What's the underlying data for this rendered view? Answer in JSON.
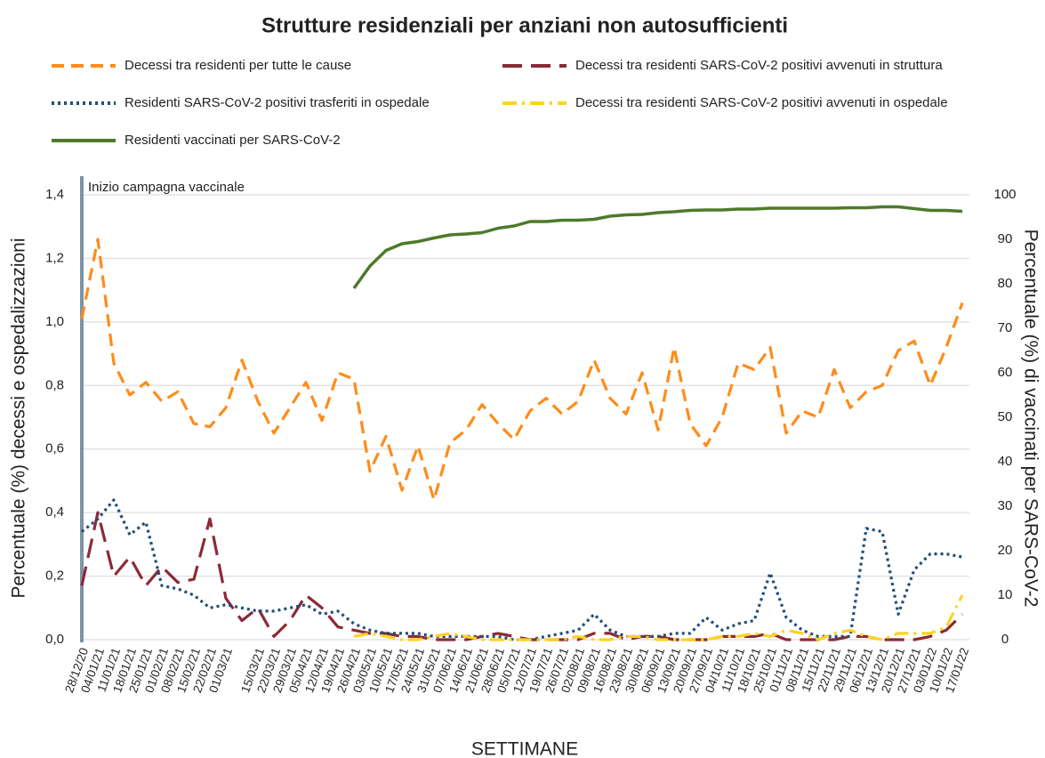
{
  "chart_data": {
    "type": "line",
    "title": "Strutture residenziali per anziani non autosufficienti",
    "x_label": "SETTIMANE",
    "y_label": "Percentuale (%) decessi e ospedalizzazioni",
    "y2_label": "Percentuale (%) di vaccinati per SARS-CoV-2",
    "annotation": "Inizio campagna vaccinale",
    "annotation_category": 0,
    "grid": true,
    "categories": [
      "28/12/20",
      "04/01/21",
      "11/01/21",
      "18/01/21",
      "25/01/21",
      "01/02/21",
      "08/02/21",
      "15/02/21",
      "22/02/21",
      "01/03/21",
      null,
      "15/03/21",
      "22/03/21",
      "29/03/21",
      "05/04/21",
      "12/04/21",
      "19/04/21",
      "26/04/21",
      "03/05/21",
      "10/05/21",
      "17/05/21",
      "24/05/21",
      "31/05/21",
      "07/06/21",
      "14/06/21",
      "21/06/21",
      "28/06/21",
      "05/07/21",
      "12/07/21",
      "19/07/21",
      "26/07/21",
      "02/08/21",
      "09/08/21",
      "16/08/21",
      "23/08/21",
      "30/08/21",
      "06/09/21",
      "13/09/21",
      "20/09/21",
      "27/09/21",
      "04/10/21",
      "11/10/21",
      "18/10/21",
      "25/10/21",
      "01/11/21",
      "08/11/21",
      "15/11/21",
      "22/11/21",
      "29/11/21",
      "06/12/21",
      "13/12/21",
      "20/12/21",
      "27/12/21",
      "03/01/22",
      "10/01/22",
      "17/01/22"
    ],
    "ylim": [
      0,
      1.4
    ],
    "yticks": [
      {
        "value": 0,
        "label": "0,0"
      },
      {
        "value": 0.2,
        "label": "0,2"
      },
      {
        "value": 0.4,
        "label": "0,4"
      },
      {
        "value": 0.6,
        "label": "0,6"
      },
      {
        "value": 0.8,
        "label": "0,8"
      },
      {
        "value": 1.0,
        "label": "1,0"
      },
      {
        "value": 1.2,
        "label": "1,2"
      },
      {
        "value": 1.4,
        "label": "1,4"
      }
    ],
    "y2lim": [
      0,
      100
    ],
    "y2ticks": [
      0,
      10,
      20,
      30,
      40,
      50,
      60,
      70,
      80,
      90,
      100
    ],
    "series": [
      {
        "name": "Decessi tra residenti per tutte le cause",
        "color": "#ff8c1a",
        "style": "dashed",
        "values": [
          1.01,
          1.26,
          0.87,
          0.77,
          0.81,
          0.75,
          0.78,
          0.68,
          0.67,
          0.73,
          0.88,
          0.75,
          0.65,
          0.73,
          0.81,
          0.69,
          0.84,
          0.82,
          0.53,
          0.64,
          0.47,
          0.61,
          0.44,
          0.62,
          0.66,
          0.74,
          0.68,
          0.63,
          0.72,
          0.76,
          0.71,
          0.75,
          0.88,
          0.76,
          0.71,
          0.84,
          0.66,
          0.92,
          0.68,
          0.61,
          0.7,
          0.87,
          0.85,
          0.92,
          0.65,
          0.72,
          0.7,
          0.85,
          0.73,
          0.78,
          0.8,
          0.91,
          0.94,
          0.8,
          0.92,
          1.06
        ]
      },
      {
        "name": "Decessi tra residenti SARS-CoV-2 positivi avvenuti in struttura",
        "color": "#8b2a35",
        "style": "longdash",
        "values": [
          0.17,
          0.4,
          0.2,
          0.26,
          0.17,
          0.23,
          0.18,
          0.19,
          0.38,
          0.13,
          0.06,
          0.1,
          0.01,
          0.06,
          0.14,
          0.1,
          0.04,
          0.03,
          0.02,
          0.02,
          0.01,
          0.01,
          0,
          0,
          0,
          0.01,
          0.02,
          0.01,
          0,
          0,
          0,
          0,
          0.02,
          0.02,
          0,
          0.01,
          0.01,
          0,
          0,
          0,
          0.01,
          0.01,
          0.01,
          0.02,
          0,
          0,
          0,
          0,
          0.01,
          0.01,
          0,
          0,
          0,
          0.01,
          0.03,
          0.08
        ]
      },
      {
        "name": "Residenti SARS-CoV-2 positivi trasferiti in ospedale",
        "color": "#1f4e79",
        "style": "dotted",
        "values": [
          0.34,
          0.38,
          0.44,
          0.33,
          0.37,
          0.17,
          0.16,
          0.14,
          0.1,
          0.11,
          0.1,
          0.09,
          0.09,
          0.1,
          0.11,
          0.08,
          0.09,
          0.05,
          0.03,
          0.02,
          0.02,
          0.02,
          0.01,
          0.01,
          0.01,
          0.01,
          0.01,
          0,
          0,
          0.01,
          0.02,
          0.03,
          0.08,
          0.03,
          0.01,
          0.01,
          0.01,
          0.02,
          0.02,
          0.07,
          0.03,
          0.05,
          0.06,
          0.21,
          0.07,
          0.03,
          0.01,
          0.01,
          0.01,
          0.35,
          0.34,
          0.08,
          0.22,
          0.27,
          0.27,
          0.26
        ]
      },
      {
        "name": "Decessi tra residenti SARS-CoV-2 positivi avvenuti in ospedale",
        "color": "#ffd21f",
        "style": "dashdot",
        "values": [
          null,
          null,
          null,
          null,
          null,
          null,
          null,
          null,
          null,
          null,
          null,
          null,
          null,
          null,
          null,
          null,
          null,
          0.01,
          0.02,
          0.01,
          0,
          0,
          0.01,
          0.02,
          0.01,
          0,
          0,
          0,
          0,
          0,
          0,
          0.01,
          0,
          0,
          0.01,
          0.01,
          0,
          0,
          0,
          0,
          0.01,
          0.01,
          0.02,
          0.01,
          0.03,
          0.02,
          0,
          0.02,
          0.03,
          0.01,
          0,
          0.02,
          0.02,
          0.02,
          0.04,
          0.14
        ]
      },
      {
        "name": "Residenti vaccinati per SARS-CoV-2",
        "color": "#4e7a2a",
        "style": "solid",
        "axis": "y2",
        "values": [
          null,
          null,
          null,
          null,
          null,
          null,
          null,
          null,
          null,
          null,
          null,
          null,
          null,
          null,
          null,
          null,
          null,
          79,
          84,
          87.5,
          89,
          89.5,
          90.3,
          91,
          91.2,
          91.5,
          92.5,
          93,
          94,
          94,
          94.3,
          94.3,
          94.5,
          95.2,
          95.5,
          95.6,
          96,
          96.2,
          96.5,
          96.6,
          96.6,
          96.8,
          96.8,
          97,
          97,
          97,
          97,
          97,
          97.1,
          97.1,
          97.3,
          97.3,
          96.9,
          96.5,
          96.5,
          96.3
        ]
      }
    ]
  }
}
